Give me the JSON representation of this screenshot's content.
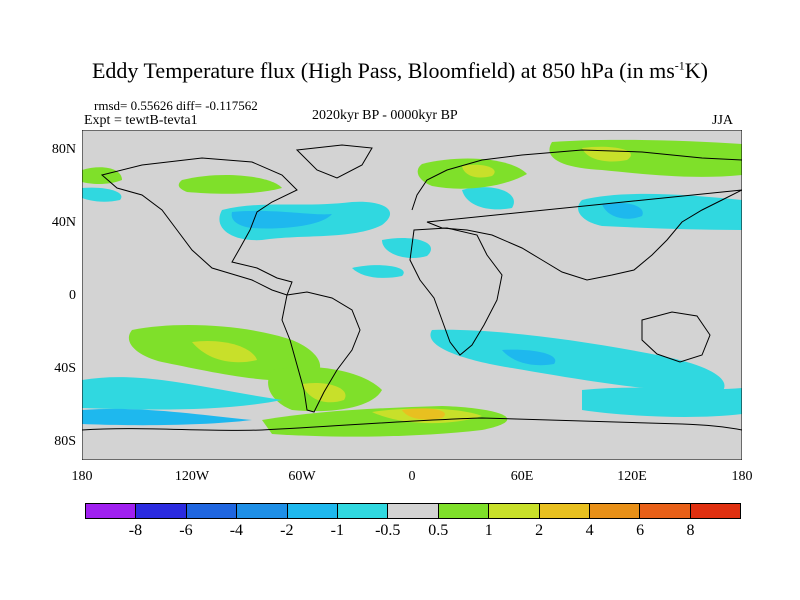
{
  "title": {
    "main": "Eddy Temperature flux (High Pass, Bloomfield) at 850 hPa (in ms",
    "sup": "-1",
    "tail": "K)"
  },
  "stats": "rmsd= 0.55626 diff= -0.117562",
  "expt": "Expt = tewtB-tevta1",
  "period": "2020kyr BP - 0000kyr BP",
  "season": "JJA",
  "axes": {
    "y_ticks": [
      "80N",
      "40N",
      "0",
      "40S",
      "80S"
    ],
    "x_ticks": [
      "180",
      "120W",
      "60W",
      "0",
      "60E",
      "120E",
      "180"
    ]
  },
  "colorbar": {
    "labels": [
      "-8",
      "-6",
      "-4",
      "-2",
      "-1",
      "-0.5",
      "0.5",
      "1",
      "2",
      "4",
      "6",
      "8"
    ],
    "colors": [
      "#a020f0",
      "#2b2be0",
      "#1f66e0",
      "#1e8fe6",
      "#1eb8ee",
      "#30d8e0",
      "#d3d3d3",
      "#7fe02a",
      "#c8e02a",
      "#e8c020",
      "#e89018",
      "#e86018",
      "#e03010"
    ]
  },
  "legend_classes": {
    "land_line": "#000000",
    "background": "#d3d3d3",
    "neg_weak": "#30d8e0",
    "neg_mid": "#1eb8ee",
    "neg_strong": "#1e8fe6",
    "pos_weak": "#7fe02a",
    "pos_mid": "#c8e02a",
    "pos_strong": "#e8c020",
    "pos_very": "#e89018"
  }
}
